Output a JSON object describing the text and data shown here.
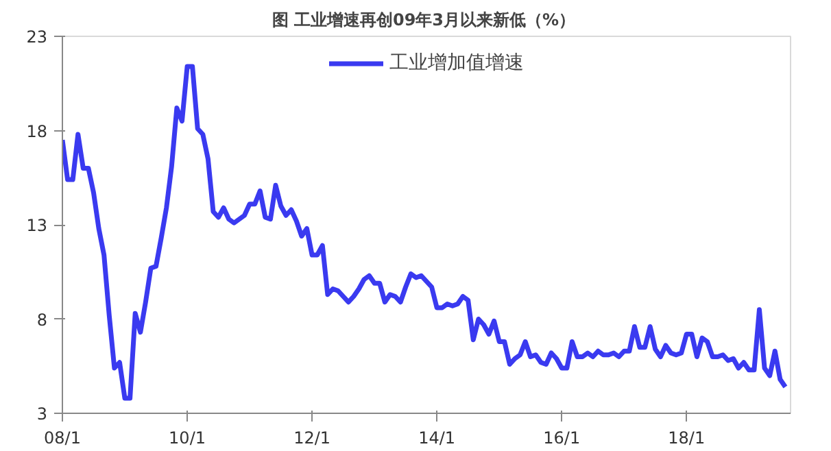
{
  "chart_data": {
    "type": "line",
    "title": "图  工业增速再创09年3月以来新低（%）",
    "categories": [
      "08/1",
      null,
      null,
      null,
      null,
      null,
      null,
      null,
      null,
      null,
      null,
      null,
      null,
      null,
      null,
      null,
      null,
      null,
      null,
      null,
      null,
      null,
      null,
      null,
      "10/1",
      null,
      null,
      null,
      null,
      null,
      null,
      null,
      null,
      null,
      null,
      null,
      null,
      null,
      null,
      null,
      null,
      null,
      null,
      null,
      null,
      null,
      null,
      null,
      "12/1",
      null,
      null,
      null,
      null,
      null,
      null,
      null,
      null,
      null,
      null,
      null,
      null,
      null,
      null,
      null,
      null,
      null,
      null,
      null,
      null,
      null,
      null,
      null,
      "14/1",
      null,
      null,
      null,
      null,
      null,
      null,
      null,
      null,
      null,
      null,
      null,
      null,
      null,
      null,
      null,
      null,
      null,
      null,
      null,
      null,
      null,
      null,
      null,
      "16/1",
      null,
      null,
      null,
      null,
      null,
      null,
      null,
      null,
      null,
      null,
      null,
      null,
      null,
      null,
      null,
      null,
      null,
      null,
      null,
      null,
      null,
      null,
      null,
      "18/1",
      null,
      null,
      null,
      null,
      null,
      null,
      null,
      null,
      null,
      null,
      null,
      null,
      null,
      null,
      null,
      null,
      null,
      null,
      null
    ],
    "series": [
      {
        "name": "工业增加值增速",
        "color": "#3a3af0",
        "values": [
          17.5,
          15.4,
          15.4,
          17.8,
          16.0,
          16.0,
          14.7,
          12.8,
          11.4,
          8.2,
          5.4,
          5.7,
          3.8,
          3.8,
          8.3,
          7.3,
          8.9,
          10.7,
          10.8,
          12.3,
          13.9,
          16.1,
          19.2,
          18.5,
          21.4,
          21.4,
          18.1,
          17.8,
          16.5,
          13.7,
          13.4,
          13.9,
          13.3,
          13.1,
          13.3,
          13.5,
          14.1,
          14.1,
          14.8,
          13.4,
          13.3,
          15.1,
          14.0,
          13.5,
          13.8,
          13.2,
          12.4,
          12.8,
          11.4,
          11.4,
          11.9,
          9.3,
          9.6,
          9.5,
          9.2,
          8.9,
          9.2,
          9.6,
          10.1,
          10.3,
          9.9,
          9.9,
          8.9,
          9.3,
          9.2,
          8.9,
          9.7,
          10.4,
          10.2,
          10.3,
          10.0,
          9.7,
          8.6,
          8.6,
          8.8,
          8.7,
          8.8,
          9.2,
          9.0,
          6.9,
          8.0,
          7.7,
          7.2,
          7.9,
          6.8,
          6.8,
          5.6,
          5.9,
          6.1,
          6.8,
          6.0,
          6.1,
          5.7,
          5.6,
          6.2,
          5.9,
          5.4,
          5.4,
          6.8,
          6.0,
          6.0,
          6.2,
          6.0,
          6.3,
          6.1,
          6.1,
          6.2,
          6.0,
          6.3,
          6.3,
          7.6,
          6.5,
          6.5,
          7.6,
          6.4,
          6.0,
          6.6,
          6.2,
          6.1,
          6.2,
          7.2,
          7.2,
          6.0,
          7.0,
          6.8,
          6.0,
          6.0,
          6.1,
          5.8,
          5.9,
          5.4,
          5.7,
          5.3,
          5.3,
          8.5,
          5.4,
          5.0,
          6.3,
          4.8,
          4.4
        ]
      }
    ],
    "ylim": [
      3,
      23
    ],
    "yticks": [
      3,
      8,
      13,
      18,
      23
    ],
    "legend": "top",
    "grid": false,
    "marker": "none",
    "line_style": "solid"
  }
}
